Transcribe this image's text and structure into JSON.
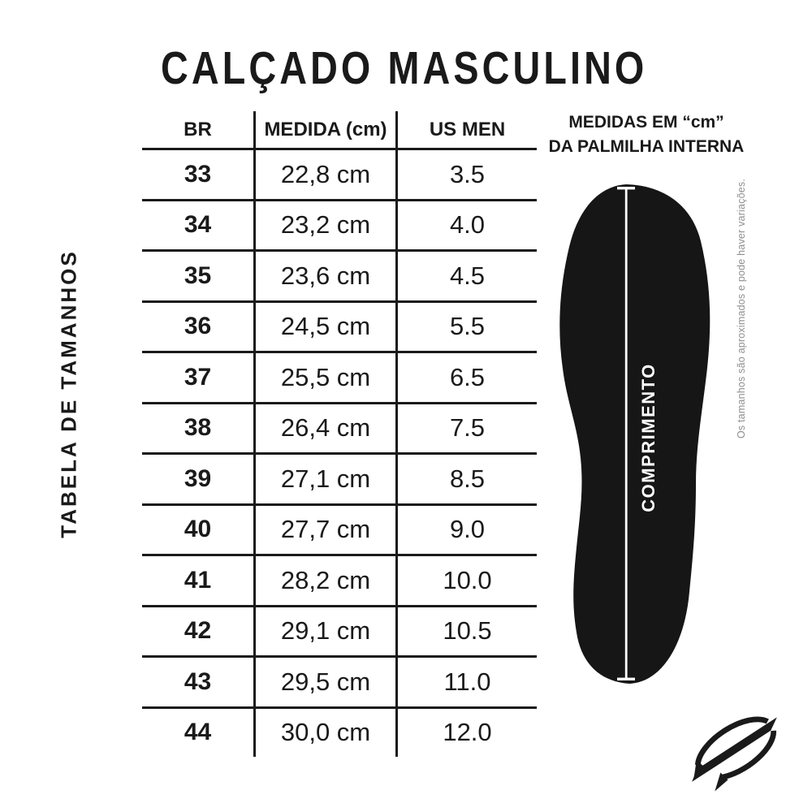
{
  "title": "CALÇADO MASCULINO",
  "side_label": "TABELA DE TAMANHOS",
  "insole": {
    "heading_line1": "MEDIDAS EM “cm”",
    "heading_line2": "DA PALMILHA INTERNA",
    "length_label": "COMPRIMENTO"
  },
  "disclaimer": "Os tamanhos são aproximados e pode haver variações.",
  "icons": {
    "insole": "insole-silhouette-illustration",
    "measurement_line": "vertical-measure-line-with-end-caps",
    "brand": "wave-slash-brand-logo"
  },
  "colors": {
    "ink": "#1a1a1a",
    "background": "#ffffff",
    "insole_fill": "#161616",
    "measure_line": "#ffffff",
    "disclaimer_text": "#8f8f8f"
  },
  "chart_data": {
    "type": "table",
    "title": "CALÇADO MASCULINO",
    "columns": [
      "BR",
      "MEDIDA (cm)",
      "US MEN"
    ],
    "rows": [
      [
        "33",
        "22,8 cm",
        "3.5"
      ],
      [
        "34",
        "23,2 cm",
        "4.0"
      ],
      [
        "35",
        "23,6 cm",
        "4.5"
      ],
      [
        "36",
        "24,5 cm",
        "5.5"
      ],
      [
        "37",
        "25,5 cm",
        "6.5"
      ],
      [
        "38",
        "26,4 cm",
        "7.5"
      ],
      [
        "39",
        "27,1 cm",
        "8.5"
      ],
      [
        "40",
        "27,7 cm",
        "9.0"
      ],
      [
        "41",
        "28,2 cm",
        "10.0"
      ],
      [
        "42",
        "29,1 cm",
        "10.5"
      ],
      [
        "43",
        "29,5 cm",
        "11.0"
      ],
      [
        "44",
        "30,0 cm",
        "12.0"
      ]
    ],
    "layout_hints": {
      "grid": "horizontal rules between rows, vertical rules between columns, no outer frame",
      "note": "sizes approximate, may vary"
    }
  }
}
